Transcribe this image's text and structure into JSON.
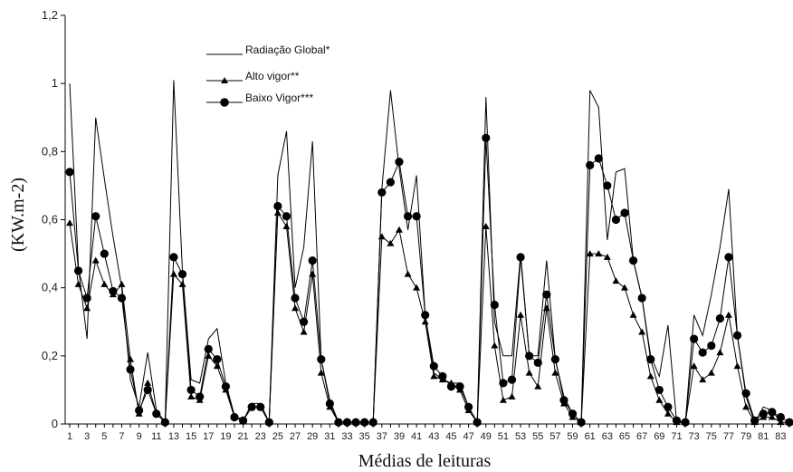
{
  "chart_data": {
    "type": "line",
    "title": "",
    "xlabel": "Médias de leituras",
    "ylabel": "(KW.m-2)",
    "xlim": [
      1,
      84
    ],
    "ylim": [
      0,
      1.2
    ],
    "y_ticks": [
      "0",
      "0,2",
      "0,4",
      "0,6",
      "0,8",
      "1",
      "1,2"
    ],
    "x_ticks": [
      "1",
      "3",
      "5",
      "7",
      "9",
      "11",
      "13",
      "15",
      "17",
      "19",
      "21",
      "23",
      "25",
      "27",
      "29",
      "31",
      "33",
      "35",
      "37",
      "39",
      "41",
      "43",
      "45",
      "47",
      "49",
      "51",
      "53",
      "55",
      "57",
      "59",
      "61",
      "63",
      "65",
      "67",
      "69",
      "71",
      "73",
      "75",
      "77",
      "79",
      "81",
      "83"
    ],
    "legend_position": "top-left",
    "grid": false,
    "series": [
      {
        "name": "Radiação Global*",
        "marker": "none",
        "color": "#000000",
        "x": [
          1,
          2,
          3,
          4,
          5,
          6,
          7,
          8,
          9,
          10,
          11,
          12,
          13,
          14,
          15,
          16,
          17,
          18,
          19,
          20,
          21,
          22,
          23,
          24,
          25,
          26,
          27,
          28,
          29,
          30,
          31,
          32,
          33,
          34,
          35,
          36,
          37,
          38,
          39,
          40,
          41,
          42,
          43,
          44,
          45,
          46,
          47,
          48,
          49,
          50,
          51,
          52,
          53,
          54,
          55,
          56,
          57,
          58,
          59,
          60,
          61,
          62,
          63,
          64,
          65,
          66,
          67,
          68,
          69,
          70,
          71,
          72,
          73,
          74,
          75,
          76,
          77,
          78,
          79,
          80,
          81,
          82,
          83,
          84
        ],
        "values": [
          1.0,
          0.46,
          0.25,
          0.9,
          0.72,
          0.55,
          0.4,
          0.13,
          0.05,
          0.21,
          0.04,
          0.005,
          1.01,
          0.45,
          0.13,
          0.12,
          0.25,
          0.28,
          0.12,
          0.025,
          0.01,
          0.06,
          0.06,
          0.005,
          0.73,
          0.86,
          0.4,
          0.52,
          0.83,
          0.19,
          0.07,
          0.005,
          0.005,
          0.005,
          0.005,
          0.005,
          0.69,
          0.98,
          0.75,
          0.57,
          0.73,
          0.32,
          0.15,
          0.13,
          0.12,
          0.12,
          0.05,
          0.005,
          0.96,
          0.3,
          0.2,
          0.2,
          0.5,
          0.2,
          0.2,
          0.48,
          0.19,
          0.08,
          0.03,
          0.005,
          0.98,
          0.93,
          0.54,
          0.74,
          0.75,
          0.48,
          0.37,
          0.2,
          0.14,
          0.29,
          0.005,
          0.005,
          0.32,
          0.26,
          0.38,
          0.52,
          0.69,
          0.26,
          0.08,
          0.005,
          0.05,
          0.04,
          0.005,
          0.005
        ]
      },
      {
        "name": "Alto vigor**",
        "marker": "triangle",
        "color": "#000000",
        "x": [
          1,
          2,
          3,
          4,
          5,
          6,
          7,
          8,
          9,
          10,
          11,
          12,
          13,
          14,
          15,
          16,
          17,
          18,
          19,
          20,
          21,
          22,
          23,
          24,
          25,
          26,
          27,
          28,
          29,
          30,
          31,
          32,
          33,
          34,
          35,
          36,
          37,
          38,
          39,
          40,
          41,
          42,
          43,
          44,
          45,
          46,
          47,
          48,
          49,
          50,
          51,
          52,
          53,
          54,
          55,
          56,
          57,
          58,
          59,
          60,
          61,
          62,
          63,
          64,
          65,
          66,
          67,
          68,
          69,
          70,
          71,
          72,
          73,
          74,
          75,
          76,
          77,
          78,
          79,
          80,
          81,
          82,
          83,
          84
        ],
        "values": [
          0.59,
          0.41,
          0.34,
          0.48,
          0.41,
          0.38,
          0.41,
          0.19,
          0.03,
          0.12,
          0.03,
          0.005,
          0.44,
          0.41,
          0.08,
          0.07,
          0.2,
          0.17,
          0.1,
          0.02,
          0.01,
          0.05,
          0.05,
          0.005,
          0.62,
          0.58,
          0.34,
          0.27,
          0.44,
          0.15,
          0.05,
          0.005,
          0.005,
          0.005,
          0.005,
          0.005,
          0.55,
          0.53,
          0.57,
          0.44,
          0.4,
          0.3,
          0.14,
          0.13,
          0.12,
          0.1,
          0.04,
          0.005,
          0.58,
          0.23,
          0.07,
          0.08,
          0.32,
          0.15,
          0.11,
          0.34,
          0.15,
          0.06,
          0.02,
          0.005,
          0.5,
          0.5,
          0.49,
          0.42,
          0.4,
          0.32,
          0.27,
          0.14,
          0.07,
          0.03,
          0.005,
          0.005,
          0.17,
          0.13,
          0.15,
          0.21,
          0.32,
          0.17,
          0.05,
          0.005,
          0.02,
          0.02,
          0.005,
          0.005
        ]
      },
      {
        "name": "Baixo Vigor***",
        "marker": "circle",
        "color": "#000000",
        "x": [
          1,
          2,
          3,
          4,
          5,
          6,
          7,
          8,
          9,
          10,
          11,
          12,
          13,
          14,
          15,
          16,
          17,
          18,
          19,
          20,
          21,
          22,
          23,
          24,
          25,
          26,
          27,
          28,
          29,
          30,
          31,
          32,
          33,
          34,
          35,
          36,
          37,
          38,
          39,
          40,
          41,
          42,
          43,
          44,
          45,
          46,
          47,
          48,
          49,
          50,
          51,
          52,
          53,
          54,
          55,
          56,
          57,
          58,
          59,
          60,
          61,
          62,
          63,
          64,
          65,
          66,
          67,
          68,
          69,
          70,
          71,
          72,
          73,
          74,
          75,
          76,
          77,
          78,
          79,
          80,
          81,
          82,
          83,
          84
        ],
        "values": [
          0.74,
          0.45,
          0.37,
          0.61,
          0.5,
          0.39,
          0.37,
          0.16,
          0.04,
          0.1,
          0.03,
          0.005,
          0.49,
          0.44,
          0.1,
          0.08,
          0.22,
          0.19,
          0.11,
          0.02,
          0.01,
          0.05,
          0.05,
          0.005,
          0.64,
          0.61,
          0.37,
          0.3,
          0.48,
          0.19,
          0.06,
          0.005,
          0.005,
          0.005,
          0.005,
          0.005,
          0.68,
          0.71,
          0.77,
          0.61,
          0.61,
          0.32,
          0.17,
          0.14,
          0.11,
          0.11,
          0.05,
          0.005,
          0.84,
          0.35,
          0.12,
          0.13,
          0.49,
          0.2,
          0.18,
          0.38,
          0.19,
          0.07,
          0.03,
          0.005,
          0.76,
          0.78,
          0.7,
          0.6,
          0.62,
          0.48,
          0.37,
          0.19,
          0.1,
          0.05,
          0.01,
          0.005,
          0.25,
          0.21,
          0.23,
          0.31,
          0.49,
          0.26,
          0.09,
          0.01,
          0.03,
          0.035,
          0.02,
          0.005
        ]
      }
    ]
  }
}
